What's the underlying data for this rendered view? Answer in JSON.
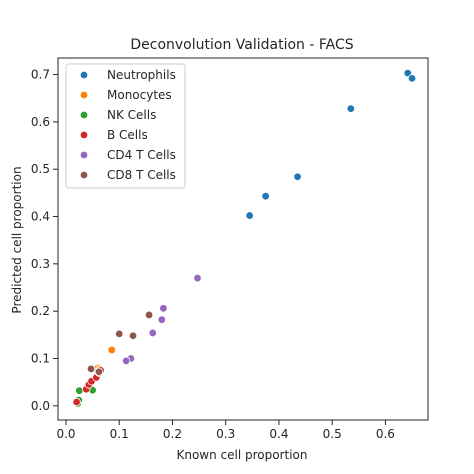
{
  "chart_data": {
    "type": "scatter",
    "title": "Deconvolution Validation - FACS",
    "xlabel": "Known cell proportion",
    "ylabel": "Predicted cell proportion",
    "xlim": [
      -0.015,
      0.68
    ],
    "ylim": [
      -0.03,
      0.735
    ],
    "xticks": [
      0.0,
      0.1,
      0.2,
      0.3,
      0.4,
      0.5,
      0.6
    ],
    "xtick_labels": [
      "0.0",
      "0.1",
      "0.2",
      "0.3",
      "0.4",
      "0.5",
      "0.6"
    ],
    "yticks": [
      0.0,
      0.1,
      0.2,
      0.3,
      0.4,
      0.5,
      0.6,
      0.7
    ],
    "ytick_labels": [
      "0.0",
      "0.1",
      "0.2",
      "0.3",
      "0.4",
      "0.5",
      "0.6",
      "0.7"
    ],
    "grid": false,
    "legend_position": "top-left",
    "series": [
      {
        "name": "Neutrophils",
        "color": "#1f77b4",
        "points": [
          [
            0.345,
            0.402
          ],
          [
            0.375,
            0.443
          ],
          [
            0.435,
            0.484
          ],
          [
            0.535,
            0.628
          ],
          [
            0.642,
            0.703
          ],
          [
            0.65,
            0.692
          ]
        ]
      },
      {
        "name": "Monocytes",
        "color": "#ff7f0e",
        "points": [
          [
            0.086,
            0.118
          ],
          [
            0.06,
            0.08
          ],
          [
            0.063,
            0.078
          ]
        ]
      },
      {
        "name": "NK Cells",
        "color": "#2ca02c",
        "points": [
          [
            0.025,
            0.032
          ],
          [
            0.022,
            0.005
          ],
          [
            0.024,
            0.012
          ],
          [
            0.05,
            0.033
          ],
          [
            0.046,
            0.05
          ],
          [
            0.06,
            0.072
          ]
        ]
      },
      {
        "name": "B Cells",
        "color": "#d62728",
        "points": [
          [
            0.02,
            0.008
          ],
          [
            0.038,
            0.035
          ],
          [
            0.043,
            0.045
          ],
          [
            0.048,
            0.052
          ],
          [
            0.057,
            0.06
          ],
          [
            0.062,
            0.07
          ],
          [
            0.065,
            0.075
          ]
        ]
      },
      {
        "name": "CD4 T Cells",
        "color": "#9467bd",
        "points": [
          [
            0.247,
            0.27
          ],
          [
            0.183,
            0.206
          ],
          [
            0.18,
            0.182
          ],
          [
            0.163,
            0.154
          ],
          [
            0.122,
            0.1
          ],
          [
            0.113,
            0.095
          ]
        ]
      },
      {
        "name": "CD8 T Cells",
        "color": "#8c564b",
        "points": [
          [
            0.156,
            0.192
          ],
          [
            0.1,
            0.152
          ],
          [
            0.126,
            0.148
          ],
          [
            0.047,
            0.078
          ],
          [
            0.062,
            0.072
          ]
        ]
      }
    ]
  }
}
